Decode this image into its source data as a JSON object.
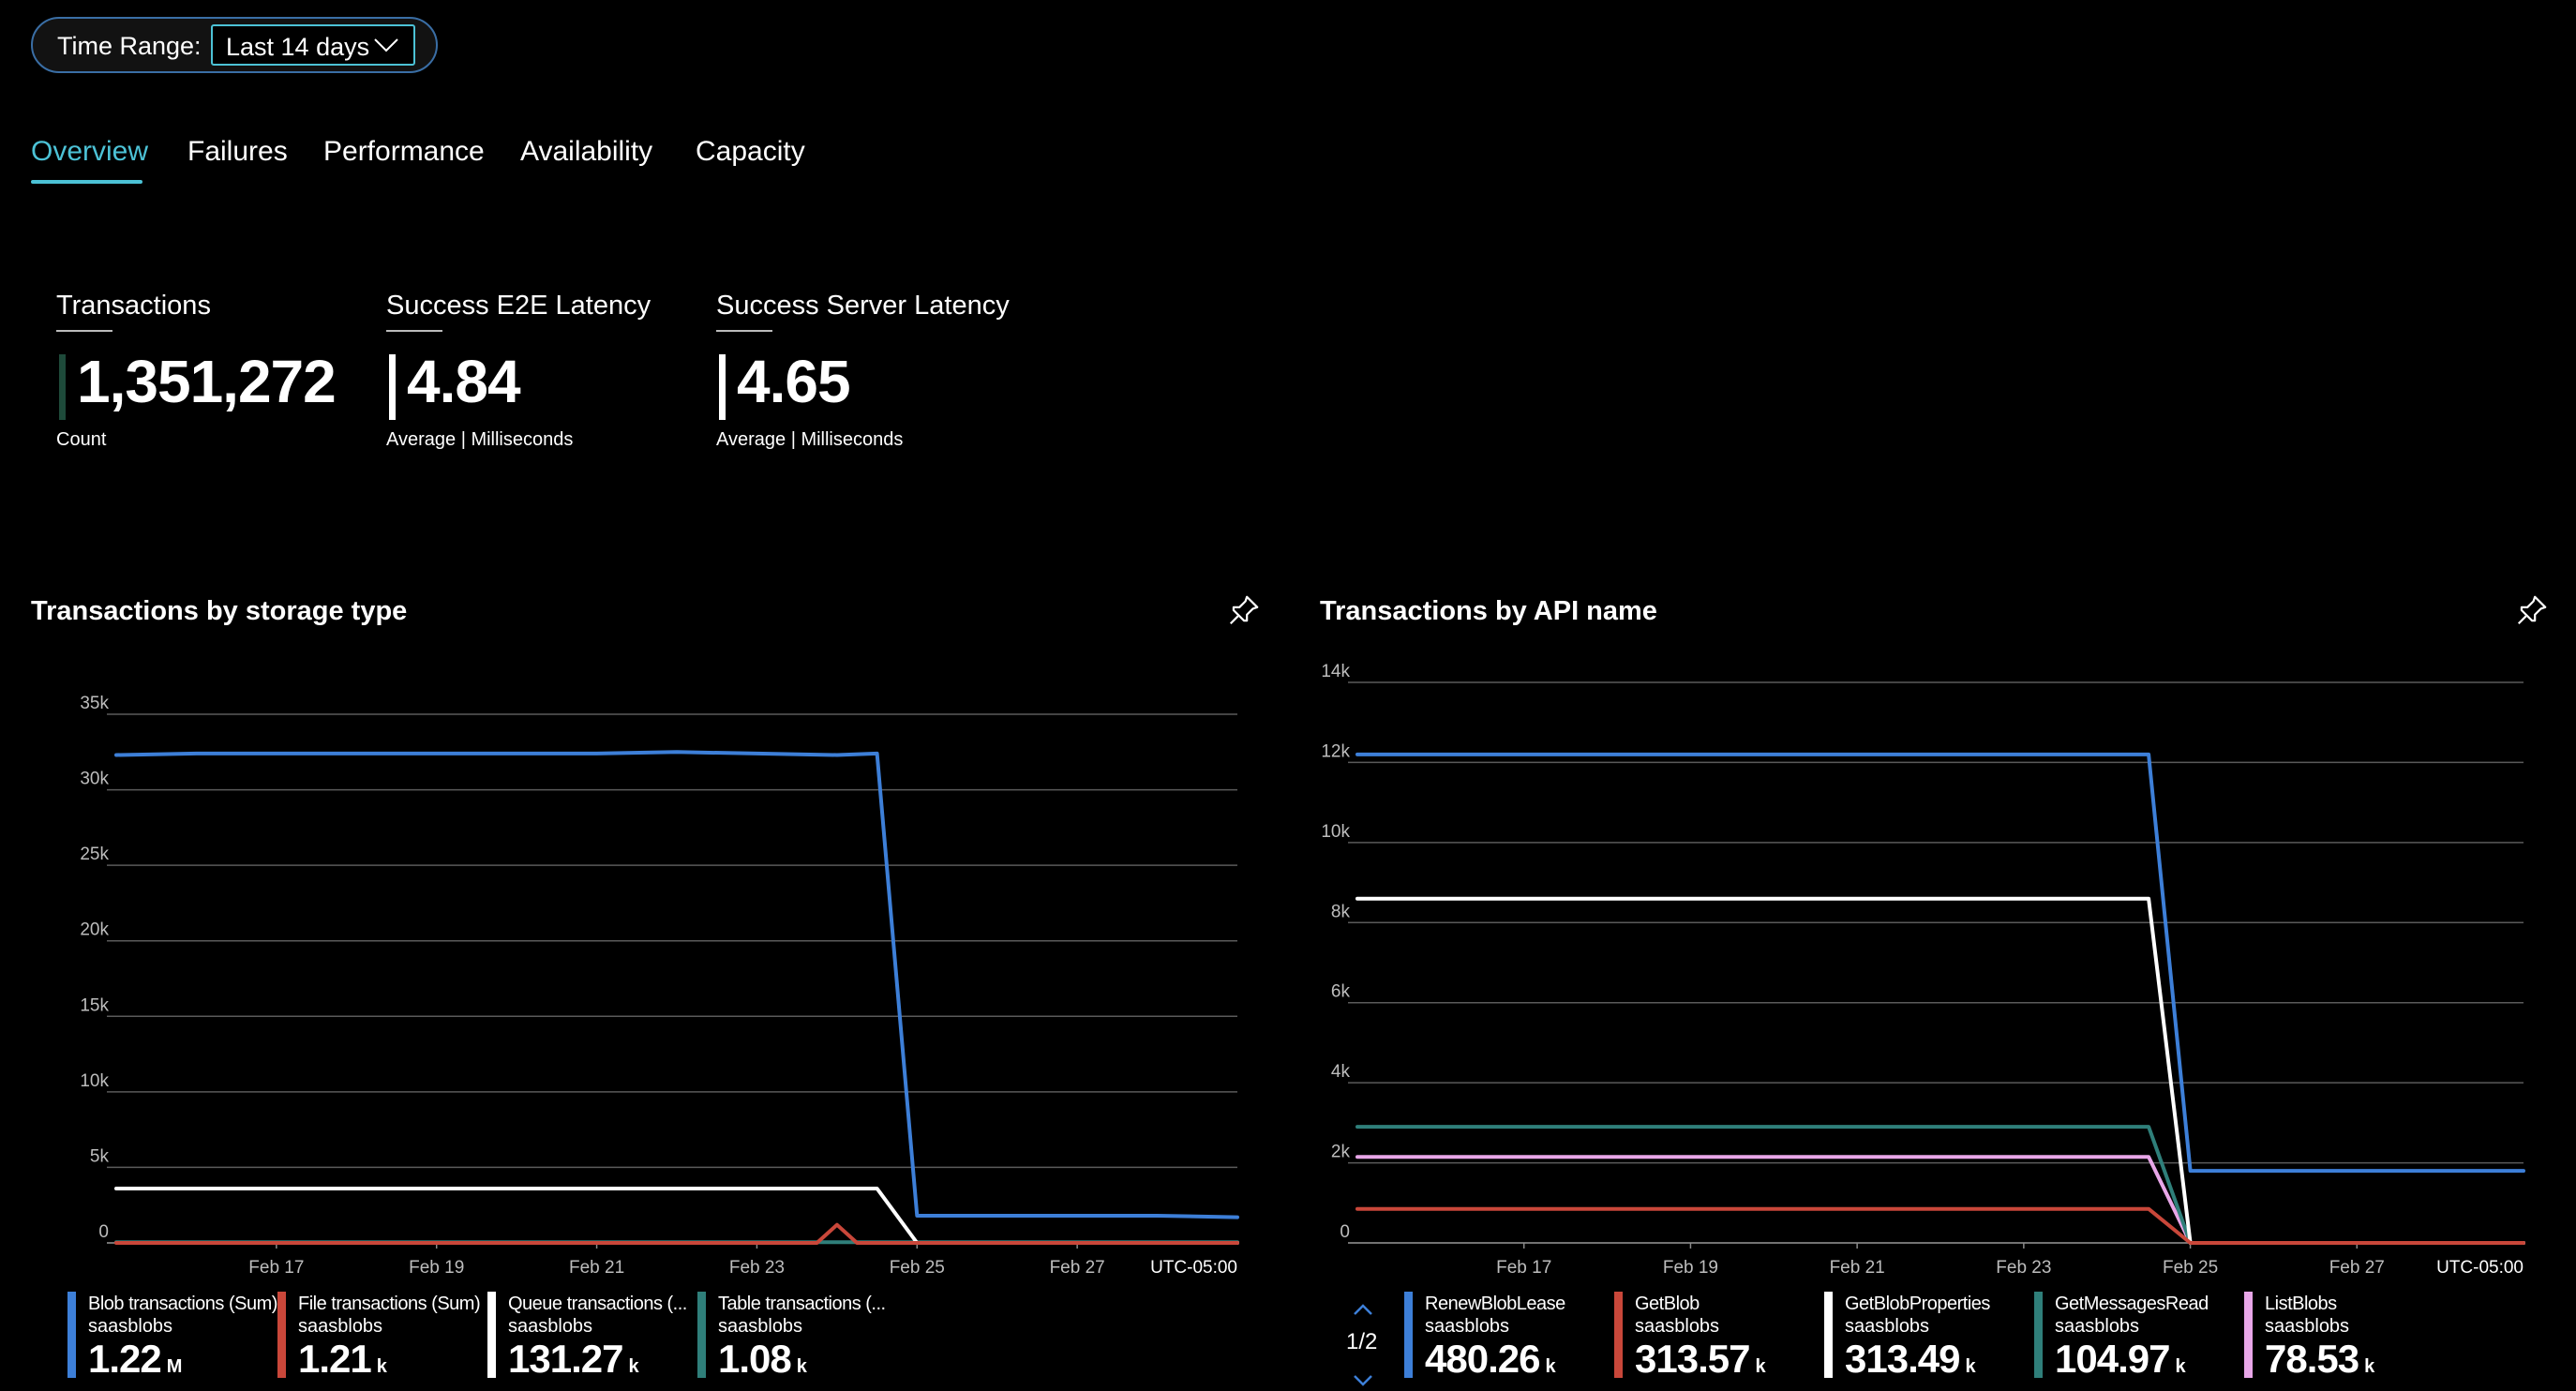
{
  "time_range": {
    "label": "Time Range:",
    "value": "Last 14 days"
  },
  "tabs": [
    {
      "label": "Overview"
    },
    {
      "label": "Failures"
    },
    {
      "label": "Performance"
    },
    {
      "label": "Availability"
    },
    {
      "label": "Capacity"
    }
  ],
  "metrics": [
    {
      "title": "Transactions",
      "value": "1,351,272",
      "sub": "Count",
      "bar_color": "#1e4a3a"
    },
    {
      "title": "Success E2E Latency",
      "value": "4.84",
      "sub": "Average | Milliseconds",
      "bar_color": "#ffffff"
    },
    {
      "title": "Success Server Latency",
      "value": "4.65",
      "sub": "Average | Milliseconds",
      "bar_color": "#ffffff"
    }
  ],
  "icons": {
    "pin": "pin-icon",
    "chevron": "chevron-down-icon",
    "pager_up": "chevron-up-icon",
    "pager_down": "chevron-down-icon"
  },
  "chart_data": [
    {
      "type": "line",
      "title": "Transactions by storage type",
      "ylim": [
        0,
        35000
      ],
      "yticks": [
        0,
        5000,
        10000,
        15000,
        20000,
        25000,
        30000,
        35000
      ],
      "ytick_labels": [
        "0",
        "5k",
        "10k",
        "15k",
        "20k",
        "25k",
        "30k",
        "35k"
      ],
      "x_range": [
        "2024-02-15",
        "2024-02-29"
      ],
      "xtick_labels": [
        "Feb 17",
        "Feb 19",
        "Feb 21",
        "Feb 23",
        "Feb 25",
        "Feb 27"
      ],
      "timezone": "UTC-05:00",
      "grid": true,
      "legend_placement": "bottom",
      "series": [
        {
          "name": "Blob transactions (Sum)",
          "resource": "saasblobs",
          "total": "1.22",
          "unit": "M",
          "color": "#3d7fd8",
          "points": [
            [
              "2024-02-15",
              32300
            ],
            [
              "2024-02-16",
              32400
            ],
            [
              "2024-02-17",
              32400
            ],
            [
              "2024-02-18",
              32400
            ],
            [
              "2024-02-19",
              32400
            ],
            [
              "2024-02-20",
              32400
            ],
            [
              "2024-02-21",
              32400
            ],
            [
              "2024-02-22",
              32500
            ],
            [
              "2024-02-23",
              32400
            ],
            [
              "2024-02-24",
              32300
            ],
            [
              "2024-02-24T12:00",
              32400
            ],
            [
              "2024-02-25",
              1800
            ],
            [
              "2024-02-26",
              1800
            ],
            [
              "2024-02-27",
              1800
            ],
            [
              "2024-02-28",
              1800
            ],
            [
              "2024-02-29",
              1700
            ]
          ]
        },
        {
          "name": "File transactions (Sum)",
          "resource": "saasblobs",
          "total": "1.21",
          "unit": "k",
          "color": "#c9473a",
          "points": [
            [
              "2024-02-15",
              0
            ],
            [
              "2024-02-23T18:00",
              0
            ],
            [
              "2024-02-24",
              1200
            ],
            [
              "2024-02-24T06:00",
              0
            ],
            [
              "2024-02-29",
              0
            ]
          ]
        },
        {
          "name": "Queue transactions (...",
          "resource": "saasblobs",
          "total": "131.27",
          "unit": "k",
          "color": "#ffffff",
          "points": [
            [
              "2024-02-15",
              3600
            ],
            [
              "2024-02-18",
              3600
            ],
            [
              "2024-02-21",
              3600
            ],
            [
              "2024-02-24",
              3600
            ],
            [
              "2024-02-24T12:00",
              3600
            ],
            [
              "2024-02-25",
              0
            ],
            [
              "2024-02-29",
              0
            ]
          ]
        },
        {
          "name": "Table transactions (...",
          "resource": "saasblobs",
          "total": "1.08",
          "unit": "k",
          "color": "#2f7f7a",
          "points": [
            [
              "2024-02-15",
              50
            ],
            [
              "2024-02-29",
              50
            ]
          ]
        }
      ]
    },
    {
      "type": "line",
      "title": "Transactions by API name",
      "ylim": [
        0,
        14000
      ],
      "yticks": [
        0,
        2000,
        4000,
        6000,
        8000,
        10000,
        12000,
        14000
      ],
      "ytick_labels": [
        "0",
        "2k",
        "4k",
        "6k",
        "8k",
        "10k",
        "12k",
        "14k"
      ],
      "x_range": [
        "2024-02-15",
        "2024-02-29"
      ],
      "xtick_labels": [
        "Feb 17",
        "Feb 19",
        "Feb 21",
        "Feb 23",
        "Feb 25",
        "Feb 27"
      ],
      "timezone": "UTC-05:00",
      "grid": true,
      "legend_placement": "bottom",
      "pager": "1/2",
      "series": [
        {
          "name": "RenewBlobLease",
          "resource": "saasblobs",
          "total": "480.26",
          "unit": "k",
          "color": "#3d7fd8",
          "points": [
            [
              "2024-02-15",
              12200
            ],
            [
              "2024-02-18",
              12200
            ],
            [
              "2024-02-21",
              12200
            ],
            [
              "2024-02-23",
              12200
            ],
            [
              "2024-02-24",
              12200
            ],
            [
              "2024-02-24T12:00",
              12200
            ],
            [
              "2024-02-25",
              1800
            ],
            [
              "2024-02-27",
              1800
            ],
            [
              "2024-02-29",
              1800
            ]
          ]
        },
        {
          "name": "GetBlob",
          "resource": "saasblobs",
          "total": "313.57",
          "unit": "k",
          "color": "#c9473a",
          "points": [
            [
              "2024-02-15",
              850
            ],
            [
              "2024-02-24",
              850
            ],
            [
              "2024-02-24T12:00",
              850
            ],
            [
              "2024-02-25",
              0
            ],
            [
              "2024-02-29",
              0
            ]
          ]
        },
        {
          "name": "GetBlobProperties",
          "resource": "saasblobs",
          "total": "313.49",
          "unit": "k",
          "color": "#ffffff",
          "points": [
            [
              "2024-02-15",
              8600
            ],
            [
              "2024-02-18",
              8600
            ],
            [
              "2024-02-21",
              8600
            ],
            [
              "2024-02-24",
              8600
            ],
            [
              "2024-02-24T12:00",
              8600
            ],
            [
              "2024-02-25",
              0
            ],
            [
              "2024-02-29",
              0
            ]
          ]
        },
        {
          "name": "GetMessagesRead",
          "resource": "saasblobs",
          "total": "104.97",
          "unit": "k",
          "color": "#2f7f7a",
          "points": [
            [
              "2024-02-15",
              2900
            ],
            [
              "2024-02-24",
              2900
            ],
            [
              "2024-02-24T12:00",
              2900
            ],
            [
              "2024-02-25",
              0
            ],
            [
              "2024-02-29",
              0
            ]
          ]
        },
        {
          "name": "ListBlobs",
          "resource": "saasblobs",
          "total": "78.53",
          "unit": "k",
          "color": "#e8a6e8",
          "points": [
            [
              "2024-02-15",
              2150
            ],
            [
              "2024-02-21",
              2150
            ],
            [
              "2024-02-24",
              2150
            ],
            [
              "2024-02-24T12:00",
              2150
            ],
            [
              "2024-02-25",
              0
            ],
            [
              "2024-02-29",
              0
            ]
          ]
        }
      ]
    }
  ]
}
